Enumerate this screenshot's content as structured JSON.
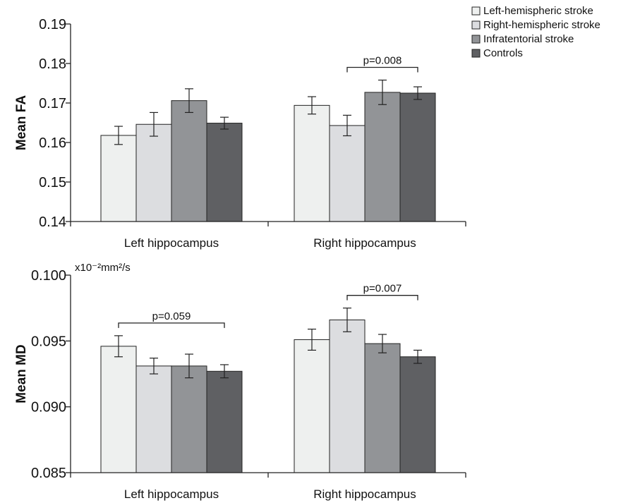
{
  "colors": {
    "Left-hemispheric stroke": "#eef0ef",
    "Right-hemispheric stroke": "#dcdde0",
    "Infratentorial stroke": "#929497",
    "Controls": "#5f6063",
    "axis": "#222222"
  },
  "legend": {
    "position": "top-right",
    "items": [
      "Left-hemispheric stroke",
      "Right-hemispheric stroke",
      "Infratentorial stroke",
      "Controls"
    ]
  },
  "chart_data": [
    {
      "type": "bar",
      "ylabel": "Mean FA",
      "unit": "",
      "ylim": [
        0.14,
        0.19
      ],
      "yticks": [
        "0.14",
        "0.15",
        "0.16",
        "0.17",
        "0.18",
        "0.19"
      ],
      "categories": [
        "Left hippocampus",
        "Right hippocampus"
      ],
      "grid": false,
      "series": [
        {
          "name": "Left-hemispheric stroke",
          "values": [
            0.1618,
            0.1694
          ],
          "err": [
            0.0023,
            0.0022
          ]
        },
        {
          "name": "Right-hemispheric stroke",
          "values": [
            0.1646,
            0.1643
          ],
          "err": [
            0.003,
            0.0026
          ]
        },
        {
          "name": "Infratentorial stroke",
          "values": [
            0.1706,
            0.1727
          ],
          "err": [
            0.003,
            0.0031
          ]
        },
        {
          "name": "Controls",
          "values": [
            0.1649,
            0.1725
          ],
          "err": [
            0.0015,
            0.0016
          ]
        }
      ],
      "annotations": [
        {
          "text": "p=0.008",
          "category": 1,
          "from_series": 1,
          "to_series": 3
        }
      ]
    },
    {
      "type": "bar",
      "ylabel": "Mean MD",
      "unit": "x10⁻²mm²/s",
      "ylim": [
        0.085,
        0.1
      ],
      "yticks": [
        "0.085",
        "0.090",
        "0.095",
        "0.100"
      ],
      "categories": [
        "Left hippocampus",
        "Right hippocampus"
      ],
      "grid": false,
      "series": [
        {
          "name": "Left-hemispheric stroke",
          "values": [
            0.0946,
            0.0951
          ],
          "err": [
            0.0008,
            0.0008
          ]
        },
        {
          "name": "Right-hemispheric stroke",
          "values": [
            0.0931,
            0.0966
          ],
          "err": [
            0.0006,
            0.0009
          ]
        },
        {
          "name": "Infratentorial stroke",
          "values": [
            0.0931,
            0.0948
          ],
          "err": [
            0.0009,
            0.0007
          ]
        },
        {
          "name": "Controls",
          "values": [
            0.0927,
            0.0938
          ],
          "err": [
            0.0005,
            0.0005
          ]
        }
      ],
      "annotations": [
        {
          "text": "p=0.059",
          "category": 0,
          "from_series": 0,
          "to_series": 3
        },
        {
          "text": "p=0.007",
          "category": 1,
          "from_series": 1,
          "to_series": 3
        }
      ]
    }
  ]
}
